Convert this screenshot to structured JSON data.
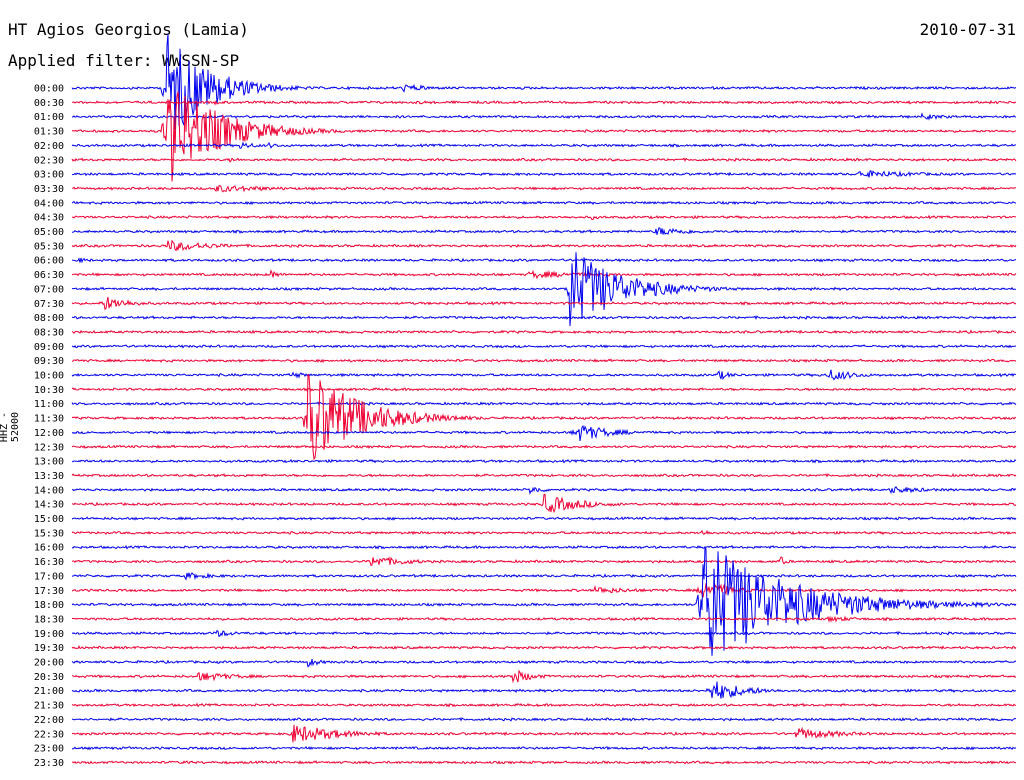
{
  "header": {
    "title": "HT Agios Georgios (Lamia)",
    "date": "2010-07-31",
    "filter_label": "Applied filter: WWSSN-SP",
    "channel_label": "HHZ - 52000"
  },
  "colors": {
    "even_trace": "#0000ee",
    "odd_trace": "#ee0033"
  },
  "chart_data": {
    "type": "line",
    "title": "HT Agios Georgios (Lamia)",
    "subtitle": "Applied filter: WWSSN-SP",
    "date": "2010-07-31",
    "ylabel": "HHZ - 52000",
    "tick_labels": [
      "00:00",
      "00:30",
      "01:00",
      "01:30",
      "02:00",
      "02:30",
      "03:00",
      "03:30",
      "04:00",
      "04:30",
      "05:00",
      "05:30",
      "06:00",
      "06:30",
      "07:00",
      "07:30",
      "08:00",
      "08:30",
      "09:00",
      "09:30",
      "10:00",
      "10:30",
      "11:00",
      "11:30",
      "12:00",
      "12:30",
      "13:00",
      "13:30",
      "14:00",
      "14:30",
      "15:00",
      "15:30",
      "16:00",
      "16:30",
      "17:00",
      "17:30",
      "18:00",
      "18:30",
      "19:00",
      "19:30",
      "20:00",
      "20:30",
      "21:00",
      "21:30",
      "22:00",
      "22:30",
      "23:00",
      "23:30"
    ],
    "trace_minutes": 30,
    "events": [
      {
        "row": 0,
        "minute": 10.5,
        "amp": 4,
        "dur": 1.0
      },
      {
        "row": 1,
        "minute": 4.5,
        "amp": 2,
        "dur": 0.8
      },
      {
        "row": 1,
        "minute": 11.0,
        "amp": 2,
        "dur": 0.8
      },
      {
        "row": 2,
        "minute": 27.0,
        "amp": 3,
        "dur": 1.0
      },
      {
        "row": 0,
        "minute": 3.0,
        "amp": 60,
        "dur": 1.2
      },
      {
        "row": 3,
        "minute": 3.0,
        "amp": 58,
        "dur": 1.5
      },
      {
        "row": 4,
        "minute": 5.3,
        "amp": 4,
        "dur": 0.6
      },
      {
        "row": 4,
        "minute": 6.2,
        "amp": 3,
        "dur": 0.5
      },
      {
        "row": 5,
        "minute": 5.0,
        "amp": 3,
        "dur": 0.4
      },
      {
        "row": 6,
        "minute": 25.0,
        "amp": 4,
        "dur": 2.0
      },
      {
        "row": 7,
        "minute": 4.5,
        "amp": 4,
        "dur": 2.0
      },
      {
        "row": 9,
        "minute": 16.5,
        "amp": 3,
        "dur": 0.3
      },
      {
        "row": 10,
        "minute": 18.5,
        "amp": 5,
        "dur": 1.2
      },
      {
        "row": 11,
        "minute": 3.0,
        "amp": 6,
        "dur": 1.5
      },
      {
        "row": 12,
        "minute": 0.2,
        "amp": 3,
        "dur": 0.4
      },
      {
        "row": 13,
        "minute": 6.3,
        "amp": 5,
        "dur": 0.3
      },
      {
        "row": 13,
        "minute": 14.5,
        "amp": 4,
        "dur": 2.0
      },
      {
        "row": 14,
        "minute": 15.8,
        "amp": 45,
        "dur": 1.5
      },
      {
        "row": 15,
        "minute": 1.0,
        "amp": 8,
        "dur": 0.8
      },
      {
        "row": 20,
        "minute": 7.0,
        "amp": 4,
        "dur": 0.4
      },
      {
        "row": 20,
        "minute": 20.5,
        "amp": 6,
        "dur": 0.4
      },
      {
        "row": 20,
        "minute": 24.0,
        "amp": 7,
        "dur": 0.8
      },
      {
        "row": 23,
        "minute": 7.5,
        "amp": 55,
        "dur": 1.5
      },
      {
        "row": 24,
        "minute": 16.0,
        "amp": 10,
        "dur": 1.0
      },
      {
        "row": 28,
        "minute": 14.5,
        "amp": 5,
        "dur": 0.5
      },
      {
        "row": 28,
        "minute": 26.0,
        "amp": 4,
        "dur": 1.2
      },
      {
        "row": 29,
        "minute": 15.0,
        "amp": 10,
        "dur": 1.2
      },
      {
        "row": 31,
        "minute": 20.0,
        "amp": 4,
        "dur": 0.3
      },
      {
        "row": 33,
        "minute": 9.5,
        "amp": 6,
        "dur": 1.2
      },
      {
        "row": 33,
        "minute": 22.5,
        "amp": 6,
        "dur": 0.2
      },
      {
        "row": 34,
        "minute": 3.5,
        "amp": 4,
        "dur": 1.0
      },
      {
        "row": 35,
        "minute": 16.5,
        "amp": 4,
        "dur": 1.5
      },
      {
        "row": 35,
        "minute": 20.0,
        "amp": 12,
        "dur": 0.8
      },
      {
        "row": 36,
        "minute": 20.0,
        "amp": 70,
        "dur": 2.5
      },
      {
        "row": 37,
        "minute": 24.0,
        "amp": 3,
        "dur": 1.2
      },
      {
        "row": 38,
        "minute": 4.5,
        "amp": 4,
        "dur": 0.8
      },
      {
        "row": 40,
        "minute": 7.5,
        "amp": 5,
        "dur": 0.4
      },
      {
        "row": 41,
        "minute": 4.0,
        "amp": 5,
        "dur": 1.3
      },
      {
        "row": 41,
        "minute": 14.0,
        "amp": 8,
        "dur": 0.6
      },
      {
        "row": 42,
        "minute": 20.3,
        "amp": 12,
        "dur": 1.0
      },
      {
        "row": 45,
        "minute": 7.0,
        "amp": 10,
        "dur": 1.5
      },
      {
        "row": 45,
        "minute": 23.0,
        "amp": 6,
        "dur": 1.5
      },
      {
        "row": 47,
        "minute": 3.5,
        "amp": 3,
        "dur": 0.3
      }
    ]
  }
}
